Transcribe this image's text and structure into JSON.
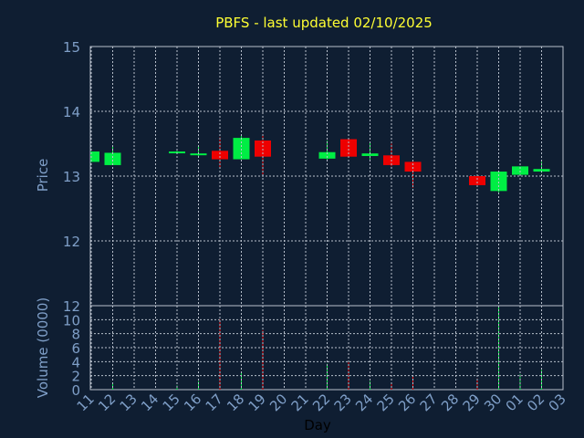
{
  "chart_data": {
    "type": "candlestick",
    "title": "PBFS - last updated 02/10/2025",
    "xlabel": "Day",
    "price_panel": {
      "ylabel": "Price",
      "ylim": [
        11,
        15
      ],
      "yticks": [
        "15",
        "14",
        "13",
        "12"
      ]
    },
    "volume_panel": {
      "ylabel": "Volume (0000)",
      "ylim": [
        0,
        12
      ],
      "yticks": [
        "12",
        "10",
        "8",
        "6",
        "4",
        "2",
        "0"
      ]
    },
    "grid": true,
    "categories": [
      "11",
      "12",
      "13",
      "14",
      "15",
      "16",
      "17",
      "18",
      "19",
      "20",
      "21",
      "22",
      "23",
      "24",
      "25",
      "26",
      "27",
      "28",
      "29",
      "30",
      "01",
      "02",
      "03"
    ],
    "candles": [
      {
        "day": "11",
        "open": 13.22,
        "close": 13.38,
        "high": 13.38,
        "low": 13.22,
        "dir": "up"
      },
      {
        "day": "12",
        "open": 13.17,
        "close": 13.36,
        "high": 13.45,
        "low": 13.17,
        "dir": "up"
      },
      {
        "day": "15",
        "open": 13.36,
        "close": 13.38,
        "high": 13.39,
        "low": 13.34,
        "dir": "up"
      },
      {
        "day": "16",
        "open": 13.33,
        "close": 13.35,
        "high": 13.45,
        "low": 13.31,
        "dir": "up"
      },
      {
        "day": "17",
        "open": 13.39,
        "close": 13.26,
        "high": 13.6,
        "low": 13.14,
        "dir": "down"
      },
      {
        "day": "18",
        "open": 13.26,
        "close": 13.59,
        "high": 13.62,
        "low": 13.26,
        "dir": "up"
      },
      {
        "day": "19",
        "open": 13.55,
        "close": 13.3,
        "high": 13.65,
        "low": 13.0,
        "dir": "down"
      },
      {
        "day": "22",
        "open": 13.27,
        "close": 13.37,
        "high": 13.55,
        "low": 13.25,
        "dir": "up"
      },
      {
        "day": "23",
        "open": 13.57,
        "close": 13.3,
        "high": 13.58,
        "low": 13.28,
        "dir": "down"
      },
      {
        "day": "24",
        "open": 13.31,
        "close": 13.35,
        "high": 13.51,
        "low": 13.23,
        "dir": "up"
      },
      {
        "day": "25",
        "open": 13.32,
        "close": 13.17,
        "high": 13.5,
        "low": 13.15,
        "dir": "down"
      },
      {
        "day": "26",
        "open": 13.22,
        "close": 13.07,
        "high": 13.22,
        "low": 12.82,
        "dir": "down"
      },
      {
        "day": "29",
        "open": 13.0,
        "close": 12.86,
        "high": 13.0,
        "low": 12.86,
        "dir": "down"
      },
      {
        "day": "30",
        "open": 12.77,
        "close": 13.07,
        "high": 13.07,
        "low": 12.75,
        "dir": "up"
      },
      {
        "day": "01",
        "open": 13.02,
        "close": 13.15,
        "high": 13.15,
        "low": 13.0,
        "dir": "up"
      },
      {
        "day": "02",
        "open": 13.07,
        "close": 13.11,
        "high": 13.22,
        "low": 13.05,
        "dir": "up"
      }
    ],
    "volume": [
      {
        "day": "12",
        "value": 1.0,
        "dir": "up"
      },
      {
        "day": "15",
        "value": 0.6,
        "dir": "up"
      },
      {
        "day": "16",
        "value": 1.2,
        "dir": "up"
      },
      {
        "day": "17",
        "value": 10.0,
        "dir": "down"
      },
      {
        "day": "18",
        "value": 2.5,
        "dir": "up"
      },
      {
        "day": "19",
        "value": 8.5,
        "dir": "down"
      },
      {
        "day": "22",
        "value": 3.7,
        "dir": "up"
      },
      {
        "day": "23",
        "value": 3.9,
        "dir": "down"
      },
      {
        "day": "24",
        "value": 1.2,
        "dir": "up"
      },
      {
        "day": "25",
        "value": 0.8,
        "dir": "down"
      },
      {
        "day": "26",
        "value": 2.0,
        "dir": "down"
      },
      {
        "day": "29",
        "value": 1.6,
        "dir": "down"
      },
      {
        "day": "30",
        "value": 12.0,
        "dir": "up"
      },
      {
        "day": "01",
        "value": 2.2,
        "dir": "up"
      },
      {
        "day": "02",
        "value": 2.8,
        "dir": "up"
      }
    ],
    "colors": {
      "background": "#0f1e32",
      "plot_background": "#0f1e32",
      "grid": "#b8c0cc",
      "axis_text": "#7f9fc8",
      "title": "#ffff33",
      "up": "#00ee44",
      "down": "#ee0000",
      "xlabel": "#000000"
    }
  }
}
